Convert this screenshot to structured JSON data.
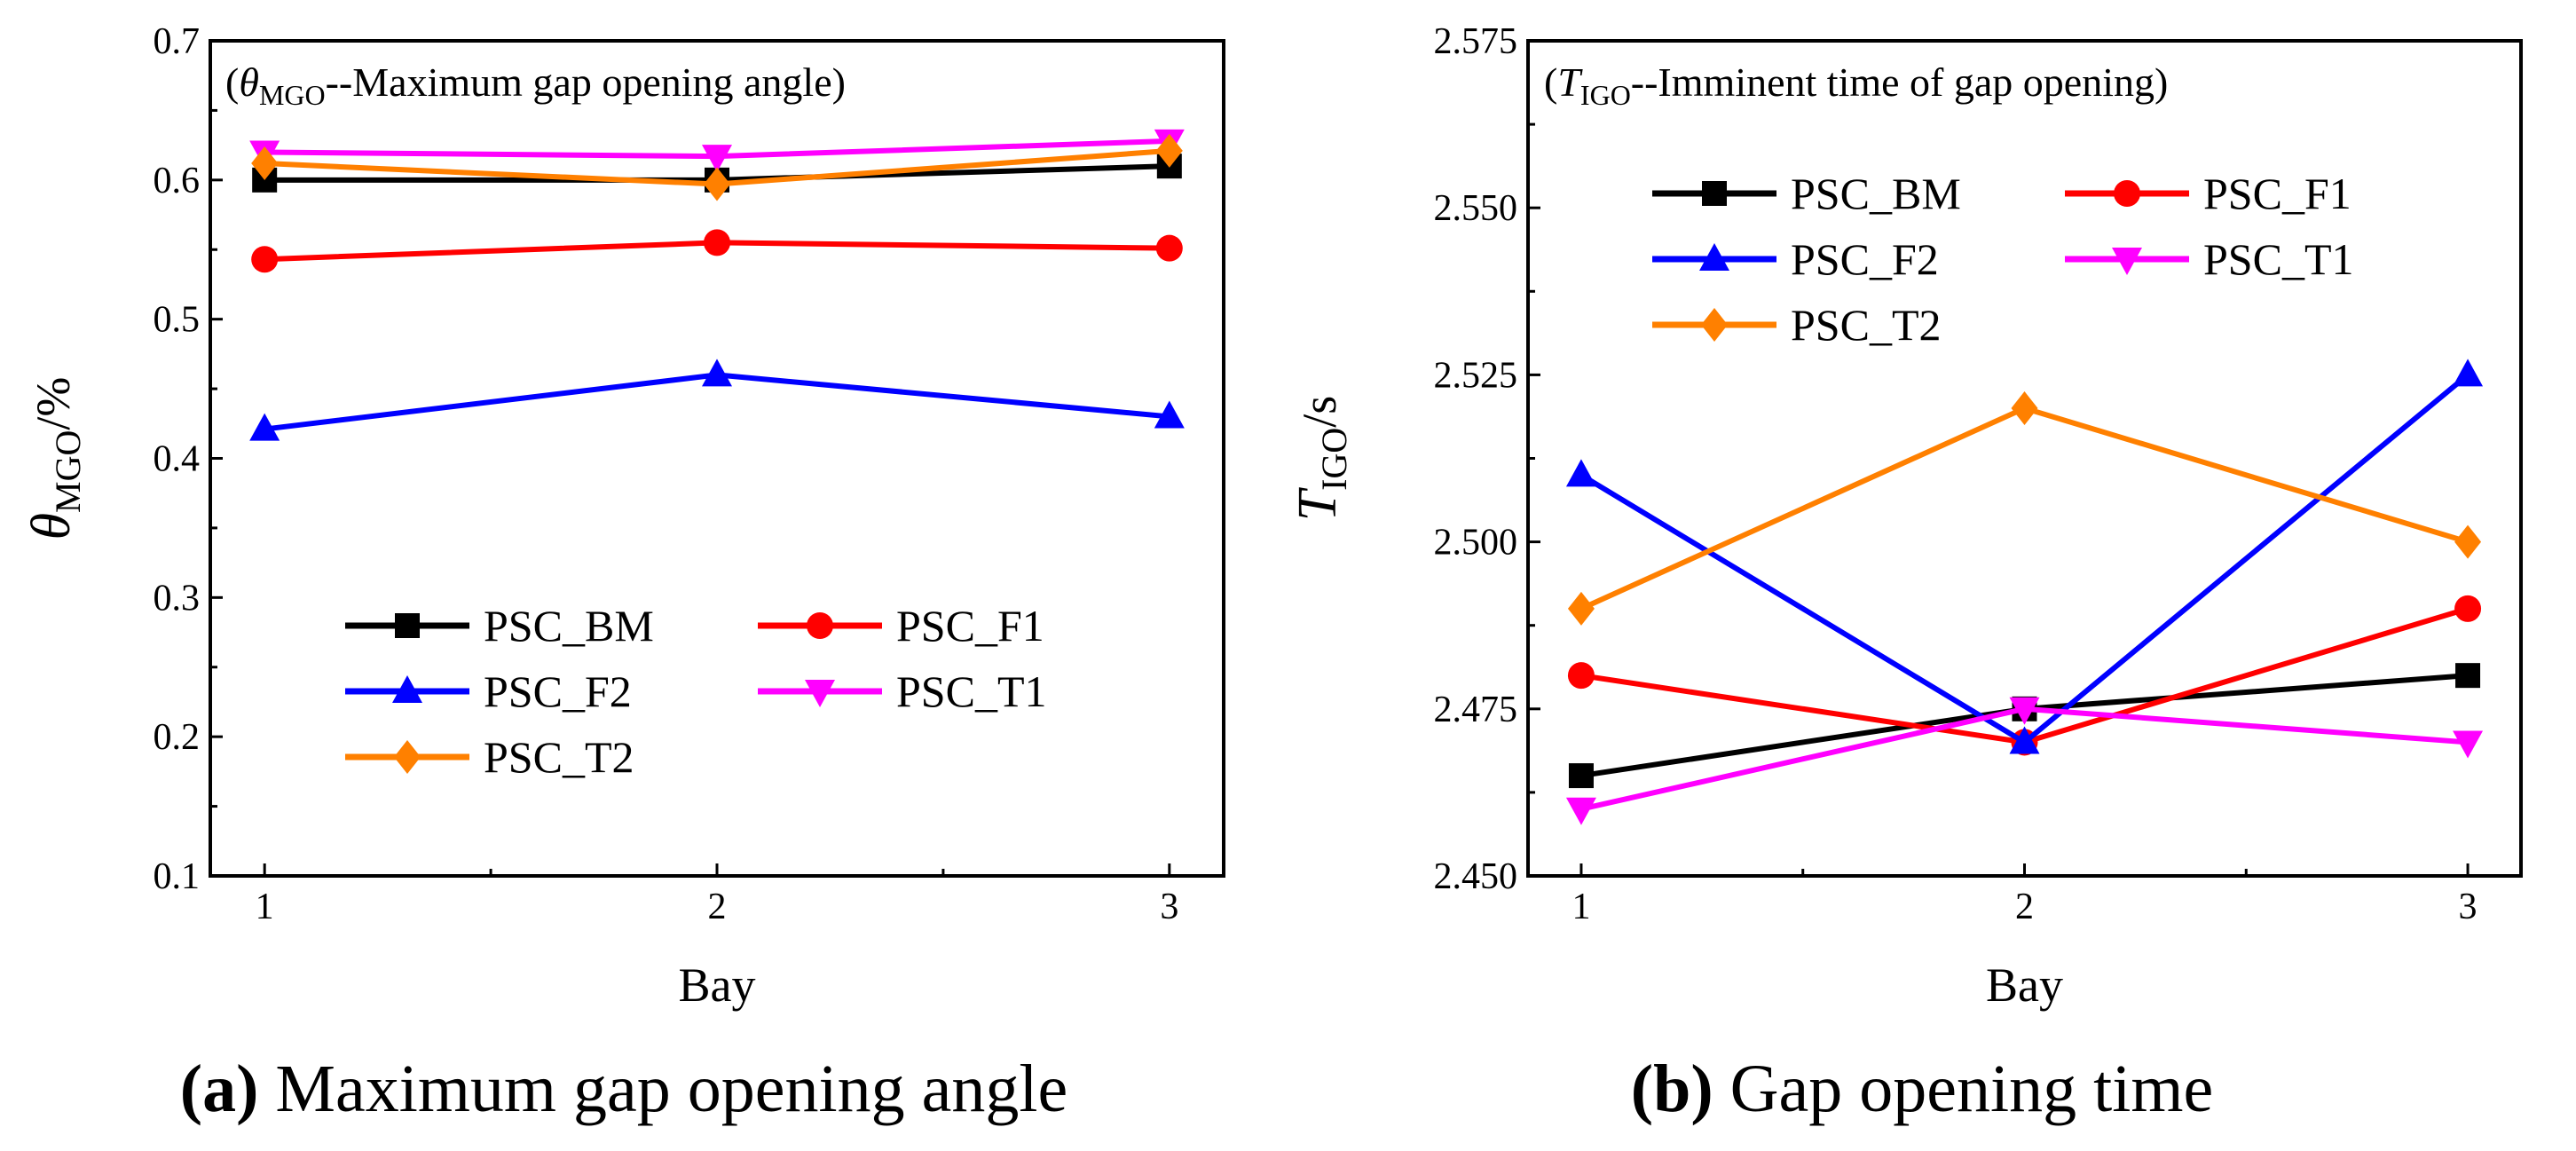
{
  "chart_data": [
    {
      "type": "line",
      "title": "",
      "annotation": {
        "open": "(",
        "symbol": "θ",
        "sub": "MGO",
        "rest": "--Maximum gap opening angle)"
      },
      "xlabel": "Bay",
      "ylabel": {
        "symbol": "θ",
        "sub": "MGO",
        "rest": "/%"
      },
      "caption": {
        "letter": "(a)",
        "text": " Maximum gap opening angle"
      },
      "x": [
        1,
        2,
        3
      ],
      "x_tick_labels": [
        "1",
        "2",
        "3"
      ],
      "xlim": [
        0.88,
        3.12
      ],
      "ylim": [
        0.1,
        0.7
      ],
      "y_ticks": [
        0.1,
        0.2,
        0.3,
        0.4,
        0.5,
        0.6,
        0.7
      ],
      "y_tick_labels": [
        "0.1",
        "0.2",
        "0.3",
        "0.4",
        "0.5",
        "0.6",
        "0.7"
      ],
      "legend_position": "lower-center",
      "series": [
        {
          "name": "PSC_BM",
          "color": "#000000",
          "marker": "square",
          "values": [
            0.6,
            0.6,
            0.61
          ]
        },
        {
          "name": "PSC_F1",
          "color": "#ff0000",
          "marker": "circle",
          "values": [
            0.543,
            0.555,
            0.551
          ]
        },
        {
          "name": "PSC_F2",
          "color": "#0000ff",
          "marker": "triangle-up",
          "values": [
            0.421,
            0.46,
            0.43
          ]
        },
        {
          "name": "PSC_T1",
          "color": "#ff00ff",
          "marker": "triangle-down",
          "values": [
            0.62,
            0.617,
            0.628
          ]
        },
        {
          "name": "PSC_T2",
          "color": "#ff8000",
          "marker": "diamond",
          "values": [
            0.612,
            0.597,
            0.621
          ]
        }
      ]
    },
    {
      "type": "line",
      "title": "",
      "annotation": {
        "open": "(",
        "symbol": "T",
        "sub": "IGO",
        "rest": "--Imminent time of gap opening)"
      },
      "xlabel": "Bay",
      "ylabel": {
        "symbol": "T",
        "sub": "IGO",
        "rest": "/s"
      },
      "caption": {
        "letter": "(b)",
        "text": " Gap opening time"
      },
      "x": [
        1,
        2,
        3
      ],
      "x_tick_labels": [
        "1",
        "2",
        "3"
      ],
      "xlim": [
        0.88,
        3.12
      ],
      "ylim": [
        2.45,
        2.575
      ],
      "y_ticks": [
        2.45,
        2.475,
        2.5,
        2.525,
        2.55,
        2.575
      ],
      "y_tick_labels": [
        "2.450",
        "2.475",
        "2.500",
        "2.525",
        "2.550",
        "2.575"
      ],
      "legend_position": "upper-center",
      "series": [
        {
          "name": "PSC_BM",
          "color": "#000000",
          "marker": "square",
          "values": [
            2.465,
            2.475,
            2.48
          ]
        },
        {
          "name": "PSC_F1",
          "color": "#ff0000",
          "marker": "circle",
          "values": [
            2.48,
            2.47,
            2.49
          ]
        },
        {
          "name": "PSC_F2",
          "color": "#0000ff",
          "marker": "triangle-up",
          "values": [
            2.51,
            2.47,
            2.525
          ]
        },
        {
          "name": "PSC_T1",
          "color": "#ff00ff",
          "marker": "triangle-down",
          "values": [
            2.46,
            2.475,
            2.47
          ]
        },
        {
          "name": "PSC_T2",
          "color": "#ff8000",
          "marker": "diamond",
          "values": [
            2.49,
            2.52,
            2.5
          ]
        }
      ]
    }
  ]
}
